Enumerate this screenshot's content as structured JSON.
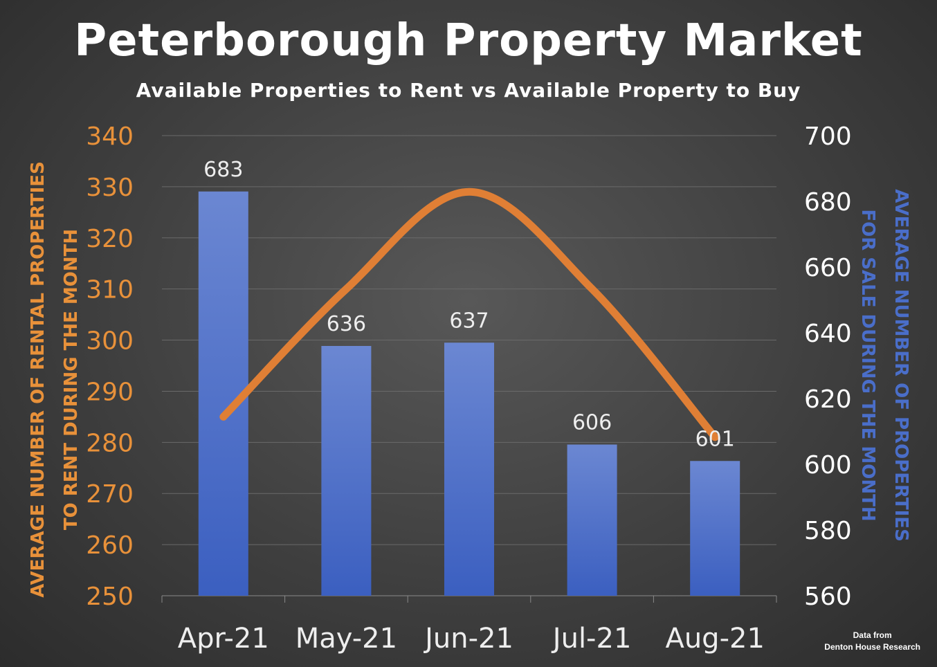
{
  "title": "Peterborough Property Market",
  "subtitle": "Available Properties to Rent vs Available Property to Buy",
  "credit": {
    "line1": "Data from",
    "line2": "Denton House Research"
  },
  "colors": {
    "rent": "#e07f35",
    "sale": "#4a6ec9",
    "left_axis_text": "#e8913a",
    "right_axis_label": "#4a6ec9",
    "right_tick_text": "#ffffff",
    "grid": "#6a6a6a"
  },
  "chart_data": {
    "type": "bar",
    "categories": [
      "Apr-21",
      "May-21",
      "Jun-21",
      "Jul-21",
      "Aug-21"
    ],
    "series": [
      {
        "type": "bar",
        "axis": "right",
        "values": [
          683,
          636,
          637,
          606,
          601
        ],
        "data_labels": [
          "683",
          "636",
          "637",
          "606",
          "601"
        ]
      },
      {
        "type": "line",
        "axis": "left",
        "smooth": true,
        "values": [
          285,
          310,
          329,
          310,
          281
        ]
      }
    ],
    "left_axis": {
      "label_line1": "AVERAGE NUMBER OF RENTAL PROPERTIES",
      "label_line2": "TO RENT DURING  THE MONTH",
      "ylim": [
        250,
        340
      ],
      "ticks": [
        "250",
        "260",
        "270",
        "280",
        "290",
        "300",
        "310",
        "320",
        "330",
        "340"
      ]
    },
    "right_axis": {
      "label_line1": "AVERAGE NUMBER OF PROPERTIES",
      "label_line2": "FOR SALE DURING THE MONTH",
      "ylim": [
        560,
        700
      ],
      "ticks": [
        "560",
        "580",
        "600",
        "620",
        "640",
        "660",
        "680",
        "700"
      ]
    },
    "grid": true,
    "legend": "none"
  }
}
